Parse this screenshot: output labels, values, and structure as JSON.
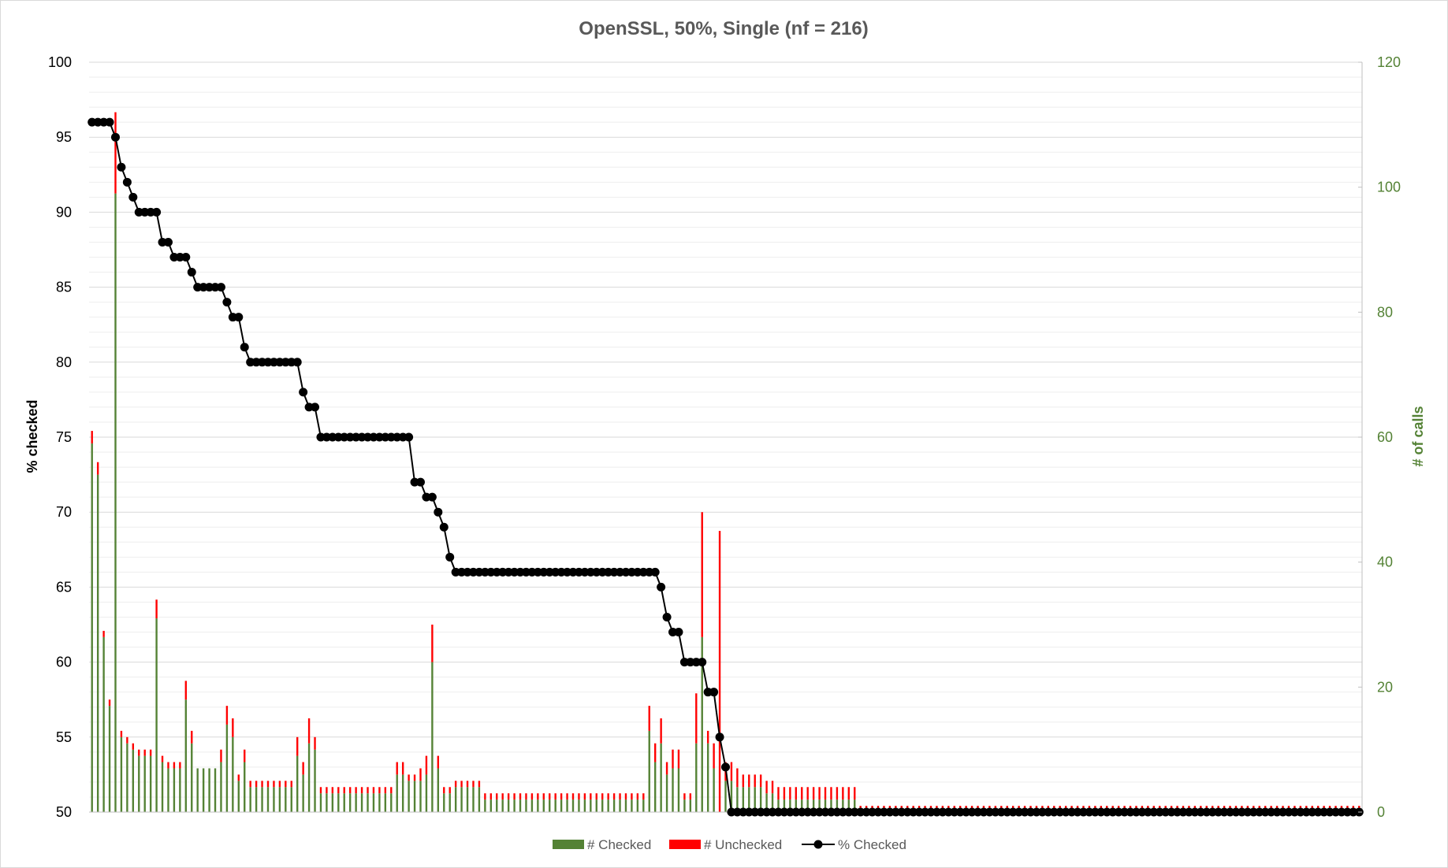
{
  "chart_data": {
    "type": "bar",
    "title": "OpenSSL, 50%, Single (nf = 216)",
    "ylabel": "% checked",
    "y2label": "# of calls",
    "ylim": [
      50,
      100
    ],
    "y2lim": [
      0,
      120
    ],
    "yticks": [
      "50",
      "55",
      "60",
      "65",
      "70",
      "75",
      "80",
      "85",
      "90",
      "95",
      "100"
    ],
    "y2ticks": [
      "0",
      "20",
      "40",
      "60",
      "80",
      "100",
      "120"
    ],
    "stacked": true,
    "grid": true,
    "legend_position": "bottom",
    "colors": {
      "checked": "#548235",
      "unchecked": "#ff0000",
      "pct": "#000000"
    },
    "legend": [
      "# Checked",
      "# Unchecked",
      "% Checked"
    ],
    "pct_checked_runs": [
      [
        96,
        4
      ],
      [
        95,
        1
      ],
      [
        93,
        1
      ],
      [
        92,
        1
      ],
      [
        91,
        1
      ],
      [
        90,
        4
      ],
      [
        88,
        2
      ],
      [
        87,
        3
      ],
      [
        86,
        1
      ],
      [
        85,
        5
      ],
      [
        84,
        1
      ],
      [
        83,
        2
      ],
      [
        81,
        1
      ],
      [
        80,
        9
      ],
      [
        78,
        1
      ],
      [
        77,
        2
      ],
      [
        75,
        16
      ],
      [
        72,
        2
      ],
      [
        71,
        2
      ],
      [
        70,
        1
      ],
      [
        69,
        1
      ],
      [
        67,
        1
      ],
      [
        66,
        35
      ],
      [
        65,
        1
      ],
      [
        63,
        1
      ],
      [
        62,
        2
      ],
      [
        60,
        4
      ],
      [
        58,
        2
      ],
      [
        55,
        1
      ],
      [
        53,
        1
      ],
      [
        50,
        108
      ]
    ],
    "calls_runs": [
      [
        [
          61,
          1
        ]
      ],
      [
        [
          56,
          1
        ]
      ],
      [
        [
          29,
          1
        ]
      ],
      [
        [
          18,
          1
        ]
      ],
      [
        [
          112,
          1
        ]
      ],
      [
        [
          13,
          1
        ]
      ],
      [
        [
          12,
          1
        ]
      ],
      [
        [
          11,
          1
        ]
      ],
      [
        [
          10,
          3
        ]
      ],
      [
        [
          34,
          1
        ]
      ],
      [
        [
          9,
          1
        ]
      ],
      [
        [
          8,
          3
        ]
      ],
      [
        [
          21,
          1
        ]
      ],
      [
        [
          13,
          1
        ]
      ],
      [
        [
          7,
          4
        ]
      ],
      [
        [
          10,
          1
        ]
      ],
      [
        [
          17,
          1
        ]
      ],
      [
        [
          15,
          1
        ]
      ],
      [
        [
          6,
          1
        ]
      ],
      [
        [
          10,
          1
        ]
      ],
      [
        [
          5,
          8
        ]
      ],
      [
        [
          12,
          1
        ]
      ],
      [
        [
          8,
          1
        ]
      ],
      [
        [
          15,
          1
        ]
      ],
      [
        [
          12,
          1
        ]
      ],
      [
        [
          4,
          13
        ]
      ],
      [
        [
          8,
          2
        ]
      ],
      [
        [
          6,
          2
        ]
      ],
      [
        [
          7,
          1
        ]
      ],
      [
        [
          9,
          1
        ]
      ],
      [
        [
          30,
          1
        ]
      ],
      [
        [
          9,
          1
        ]
      ],
      [
        [
          4,
          2
        ]
      ],
      [
        [
          5,
          5
        ]
      ],
      [
        [
          3,
          28
        ]
      ],
      [
        [
          17,
          1
        ]
      ],
      [
        [
          11,
          1
        ]
      ],
      [
        [
          15,
          1
        ]
      ],
      [
        [
          8,
          1
        ]
      ],
      [
        [
          10,
          2
        ]
      ],
      [
        [
          3,
          2
        ]
      ],
      [
        [
          19,
          1
        ]
      ],
      [
        [
          48,
          1
        ]
      ],
      [
        [
          13,
          1
        ]
      ],
      [
        [
          11,
          1
        ]
      ],
      [
        [
          45,
          1
        ]
      ],
      [
        [
          8,
          2
        ]
      ],
      [
        [
          7,
          1
        ]
      ],
      [
        [
          6,
          4
        ]
      ],
      [
        [
          5,
          2
        ]
      ],
      [
        [
          4,
          14
        ]
      ],
      [
        [
          1,
          92
        ]
      ]
    ],
    "unchecked_runs": [
      [
        [
          2,
          1
        ]
      ],
      [
        [
          2,
          1
        ]
      ],
      [
        [
          1,
          1
        ]
      ],
      [
        [
          1,
          1
        ]
      ],
      [
        [
          13,
          1
        ]
      ],
      [
        [
          1,
          1
        ]
      ],
      [
        [
          1,
          1
        ]
      ],
      [
        [
          1,
          1
        ]
      ],
      [
        [
          1,
          3
        ]
      ],
      [
        [
          3,
          1
        ]
      ],
      [
        [
          1,
          1
        ]
      ],
      [
        [
          1,
          3
        ]
      ],
      [
        [
          3,
          1
        ]
      ],
      [
        [
          2,
          1
        ]
      ],
      [
        [
          0,
          4
        ]
      ],
      [
        [
          2,
          1
        ]
      ],
      [
        [
          3,
          1
        ]
      ],
      [
        [
          3,
          1
        ]
      ],
      [
        [
          1,
          1
        ]
      ],
      [
        [
          2,
          1
        ]
      ],
      [
        [
          1,
          8
        ]
      ],
      [
        [
          3,
          1
        ]
      ],
      [
        [
          2,
          1
        ]
      ],
      [
        [
          4,
          1
        ]
      ],
      [
        [
          2,
          1
        ]
      ],
      [
        [
          1,
          13
        ]
      ],
      [
        [
          2,
          2
        ]
      ],
      [
        [
          1,
          2
        ]
      ],
      [
        [
          2,
          1
        ]
      ],
      [
        [
          3,
          1
        ]
      ],
      [
        [
          6,
          1
        ]
      ],
      [
        [
          2,
          1
        ]
      ],
      [
        [
          1,
          2
        ]
      ],
      [
        [
          1,
          5
        ]
      ],
      [
        [
          1,
          28
        ]
      ],
      [
        [
          4,
          1
        ]
      ],
      [
        [
          3,
          1
        ]
      ],
      [
        [
          4,
          1
        ]
      ],
      [
        [
          2,
          1
        ]
      ],
      [
        [
          3,
          2
        ]
      ],
      [
        [
          1,
          2
        ]
      ],
      [
        [
          8,
          1
        ]
      ],
      [
        [
          20,
          1
        ]
      ],
      [
        [
          2,
          1
        ]
      ],
      [
        [
          4,
          1
        ]
      ],
      [
        [
          45,
          1
        ]
      ],
      [
        [
          3,
          2
        ]
      ],
      [
        [
          3,
          1
        ]
      ],
      [
        [
          2,
          4
        ]
      ],
      [
        [
          2,
          2
        ]
      ],
      [
        [
          2,
          14
        ]
      ],
      [
        [
          1,
          92
        ]
      ]
    ]
  }
}
